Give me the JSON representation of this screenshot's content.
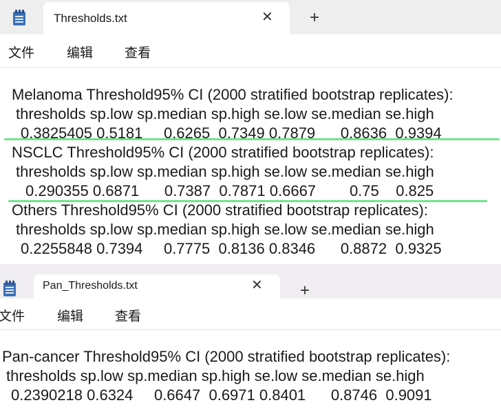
{
  "window1": {
    "tab_title": "Thresholds.txt",
    "tab_close": "✕",
    "new_tab": "+",
    "menu": [
      "文件",
      "编辑",
      "查看"
    ],
    "lines": [
      "Melanoma Threshold95% CI (2000 stratified bootstrap replicates):",
      "thresholds sp.low sp.median sp.high se.low se.median se.high",
      "0.3825405 0.5181     0.6265  0.7349 0.7879      0.8636  0.9394",
      "NSCLC Threshold95% CI (2000 stratified bootstrap replicates):",
      "thresholds sp.low sp.median sp.high se.low se.median se.high",
      "0.290355 0.6871      0.7387  0.7871 0.6667        0.75    0.825",
      "Others Threshold95% CI (2000 stratified bootstrap replicates):",
      "thresholds sp.low sp.median sp.high se.low se.median se.high",
      "0.2255848 0.7394     0.7775  0.8136 0.8346      0.8872  0.9325"
    ],
    "highlight_color": "#6fe58c"
  },
  "window2": {
    "tab_title": "Pan_Thresholds.txt",
    "tab_close": "✕",
    "new_tab": "+",
    "menu": [
      "文件",
      "编辑",
      "查看"
    ],
    "lines": [
      "Pan-cancer Threshold95% CI (2000 stratified bootstrap replicates):",
      "thresholds sp.low sp.median sp.high se.low se.median se.high",
      "0.2390218 0.6324     0.6647  0.6971 0.8401      0.8746  0.9091"
    ]
  },
  "icons": {
    "app_icon": "notepad-icon",
    "close": "close-icon",
    "add": "plus-icon"
  },
  "colors": {
    "tabbar_bg": "#eeeeee",
    "app_icon_blue": "#3b6fb6"
  }
}
